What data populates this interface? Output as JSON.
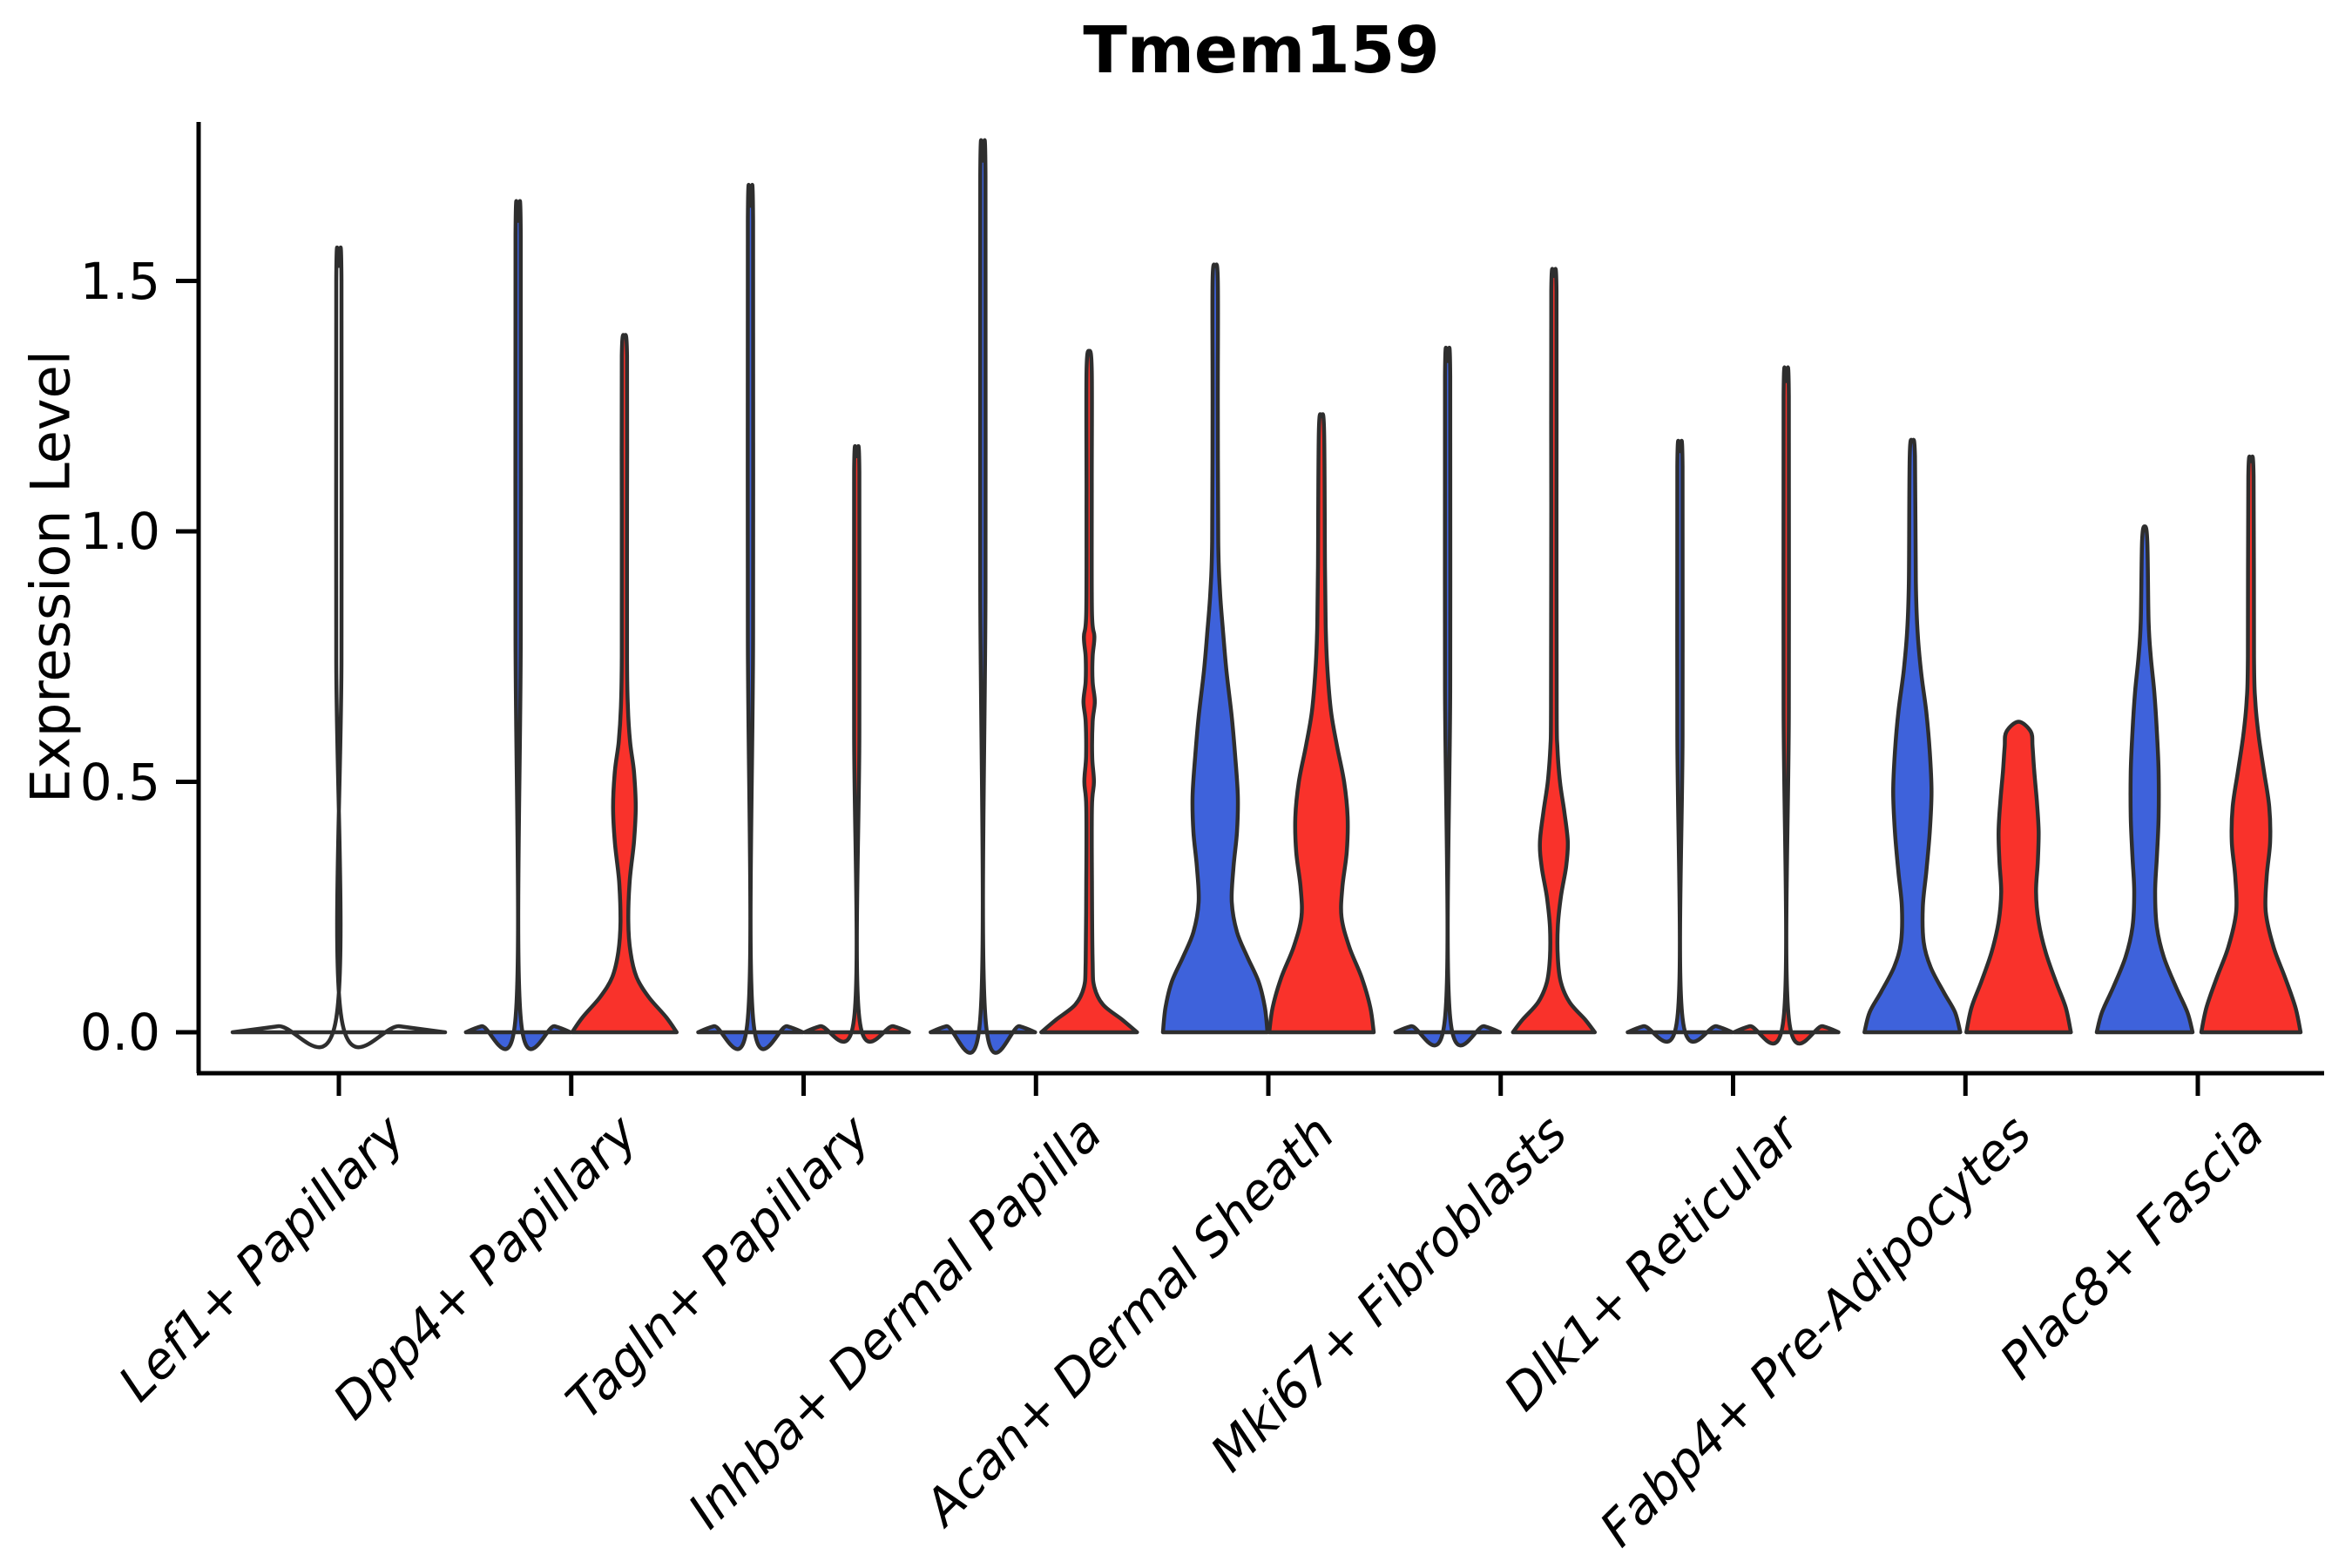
{
  "title": "Tmem159",
  "axes": {
    "y": {
      "label": "Expression Level",
      "ticks": [
        {
          "value": 0.0,
          "label": "0.0"
        },
        {
          "value": 0.5,
          "label": "0.5"
        },
        {
          "value": 1.0,
          "label": "1.0"
        },
        {
          "value": 1.5,
          "label": "1.5"
        }
      ]
    },
    "x": {
      "categories": [
        "Lef1+ Papillary",
        "Dpp4+ Papillary",
        "Tagln+ Papillary",
        "Inhba+ Dermal Papilla",
        "Acan+ Dermal Sheath",
        "Mki67+ Fibroblasts",
        "Dlk1+ Reticular",
        "Fabp4+ Pre-Adipocytes",
        "Plac8+ Fascia"
      ]
    }
  },
  "colors": {
    "split_left_fill": "#3E62DB",
    "split_right_fill": "#F9322B",
    "violin_outline": "#2E2E2E",
    "axis_color": "#000000",
    "background": "#FFFFFF"
  },
  "chart_data": {
    "type": "violin",
    "title": "Tmem159",
    "ylabel": "Expression Level",
    "ylim": [
      -0.08,
      1.82
    ],
    "yticks": [
      0.0,
      0.5,
      1.0,
      1.5
    ],
    "grid": false,
    "legend": "none",
    "categories": [
      "Lef1+ Papillary",
      "Dpp4+ Papillary",
      "Tagln+ Papillary",
      "Inhba+ Dermal Papilla",
      "Acan+ Dermal Sheath",
      "Mki67+ Fibroblasts",
      "Dlk1+ Reticular",
      "Fabp4+ Pre-Adipocytes",
      "Plac8+ Fascia"
    ],
    "violins": [
      {
        "category": 0,
        "slot": "full",
        "fill": null,
        "max_expression": 1.53,
        "profile": [
          [
            0,
            122
          ],
          [
            0.012,
            70
          ],
          [
            0.028,
            3
          ],
          [
            0.75,
            3
          ],
          [
            1.5,
            3
          ],
          [
            1.53,
            0
          ]
        ]
      },
      {
        "category": 1,
        "slot": "left",
        "fill": "#3E62DB",
        "max_expression": 1.62,
        "profile": [
          [
            0,
            60
          ],
          [
            0.012,
            42
          ],
          [
            0.028,
            3
          ],
          [
            0.8,
            3
          ],
          [
            1.59,
            3
          ],
          [
            1.62,
            0
          ]
        ]
      },
      {
        "category": 1,
        "slot": "right",
        "fill": "#F9322B",
        "max_expression": 1.39,
        "profile": [
          [
            0,
            60
          ],
          [
            0.03,
            48
          ],
          [
            0.07,
            28
          ],
          [
            0.11,
            14
          ],
          [
            0.16,
            7
          ],
          [
            0.22,
            4.5
          ],
          [
            0.3,
            6
          ],
          [
            0.38,
            11
          ],
          [
            0.45,
            13
          ],
          [
            0.52,
            11
          ],
          [
            0.58,
            6.5
          ],
          [
            0.65,
            4
          ],
          [
            0.75,
            3
          ],
          [
            1.05,
            3
          ],
          [
            1.35,
            3
          ],
          [
            1.39,
            0
          ]
        ]
      },
      {
        "category": 2,
        "slot": "left",
        "fill": "#3E62DB",
        "max_expression": 1.65,
        "profile": [
          [
            0,
            60
          ],
          [
            0.012,
            42
          ],
          [
            0.028,
            3
          ],
          [
            0.8,
            3
          ],
          [
            1.62,
            3
          ],
          [
            1.65,
            0
          ]
        ]
      },
      {
        "category": 2,
        "slot": "right",
        "fill": "#F9322B",
        "max_expression": 1.15,
        "profile": [
          [
            0,
            60
          ],
          [
            0.012,
            42
          ],
          [
            0.028,
            3
          ],
          [
            0.6,
            3
          ],
          [
            1.12,
            3
          ],
          [
            1.15,
            0
          ]
        ]
      },
      {
        "category": 3,
        "slot": "left",
        "fill": "#3E62DB",
        "max_expression": 1.74,
        "profile": [
          [
            0,
            60
          ],
          [
            0.012,
            42
          ],
          [
            0.028,
            3
          ],
          [
            0.9,
            3
          ],
          [
            1.71,
            3
          ],
          [
            1.74,
            0
          ]
        ]
      },
      {
        "category": 3,
        "slot": "right",
        "fill": "#F9322B",
        "max_expression": 1.36,
        "profile": [
          [
            0,
            55
          ],
          [
            0.025,
            38
          ],
          [
            0.055,
            16
          ],
          [
            0.09,
            6
          ],
          [
            0.14,
            4
          ],
          [
            0.3,
            3.2
          ],
          [
            0.45,
            3.2
          ],
          [
            0.5,
            5.5
          ],
          [
            0.55,
            3.5
          ],
          [
            0.62,
            4
          ],
          [
            0.66,
            6.5
          ],
          [
            0.7,
            4
          ],
          [
            0.75,
            4
          ],
          [
            0.79,
            6
          ],
          [
            0.84,
            3.2
          ],
          [
            1.08,
            3
          ],
          [
            1.32,
            3
          ],
          [
            1.36,
            0
          ]
        ]
      },
      {
        "category": 4,
        "slot": "left",
        "fill": "#3E62DB",
        "max_expression": 1.53,
        "profile": [
          [
            0,
            60
          ],
          [
            0.05,
            57
          ],
          [
            0.1,
            50
          ],
          [
            0.15,
            37
          ],
          [
            0.2,
            25
          ],
          [
            0.26,
            19
          ],
          [
            0.33,
            21
          ],
          [
            0.4,
            25
          ],
          [
            0.47,
            26
          ],
          [
            0.55,
            23
          ],
          [
            0.63,
            19
          ],
          [
            0.72,
            13
          ],
          [
            0.8,
            9
          ],
          [
            0.88,
            5.5
          ],
          [
            0.98,
            3.5
          ],
          [
            1.25,
            3
          ],
          [
            1.5,
            3
          ],
          [
            1.53,
            0
          ]
        ]
      },
      {
        "category": 4,
        "slot": "right",
        "fill": "#F9322B",
        "max_expression": 1.23,
        "profile": [
          [
            0,
            60
          ],
          [
            0.05,
            56
          ],
          [
            0.11,
            46
          ],
          [
            0.17,
            32
          ],
          [
            0.23,
            23
          ],
          [
            0.29,
            24
          ],
          [
            0.36,
            29
          ],
          [
            0.43,
            30
          ],
          [
            0.5,
            26
          ],
          [
            0.57,
            18
          ],
          [
            0.64,
            11
          ],
          [
            0.72,
            7
          ],
          [
            0.8,
            5
          ],
          [
            0.93,
            4
          ],
          [
            1.2,
            3
          ],
          [
            1.23,
            0
          ]
        ]
      },
      {
        "category": 5,
        "slot": "left",
        "fill": "#3E62DB",
        "max_expression": 1.34,
        "profile": [
          [
            0,
            60
          ],
          [
            0.012,
            42
          ],
          [
            0.028,
            3
          ],
          [
            0.7,
            3
          ],
          [
            1.31,
            3
          ],
          [
            1.34,
            0
          ]
        ]
      },
      {
        "category": 5,
        "slot": "right",
        "fill": "#F9322B",
        "max_expression": 1.51,
        "profile": [
          [
            0,
            47
          ],
          [
            0.025,
            36
          ],
          [
            0.06,
            18
          ],
          [
            0.1,
            8
          ],
          [
            0.15,
            4.5
          ],
          [
            0.21,
            4.5
          ],
          [
            0.27,
            8
          ],
          [
            0.33,
            14
          ],
          [
            0.38,
            16
          ],
          [
            0.44,
            12
          ],
          [
            0.5,
            7
          ],
          [
            0.57,
            4
          ],
          [
            0.65,
            3.2
          ],
          [
            1.05,
            3
          ],
          [
            1.48,
            3
          ],
          [
            1.51,
            0
          ]
        ]
      },
      {
        "category": 6,
        "slot": "left",
        "fill": "#3E62DB",
        "max_expression": 1.16,
        "profile": [
          [
            0,
            60
          ],
          [
            0.012,
            42
          ],
          [
            0.028,
            3
          ],
          [
            0.6,
            3
          ],
          [
            1.13,
            3
          ],
          [
            1.16,
            0
          ]
        ]
      },
      {
        "category": 6,
        "slot": "right",
        "fill": "#F9322B",
        "max_expression": 1.3,
        "profile": [
          [
            0,
            60
          ],
          [
            0.012,
            42
          ],
          [
            0.028,
            3
          ],
          [
            0.65,
            3
          ],
          [
            1.27,
            3
          ],
          [
            1.3,
            0
          ]
        ]
      },
      {
        "category": 7,
        "slot": "left",
        "fill": "#3E62DB",
        "max_expression": 1.18,
        "profile": [
          [
            0,
            55
          ],
          [
            0.04,
            49
          ],
          [
            0.08,
            36
          ],
          [
            0.13,
            21
          ],
          [
            0.18,
            13
          ],
          [
            0.25,
            12
          ],
          [
            0.32,
            16
          ],
          [
            0.4,
            20
          ],
          [
            0.48,
            22
          ],
          [
            0.56,
            20
          ],
          [
            0.64,
            16
          ],
          [
            0.72,
            10
          ],
          [
            0.8,
            6
          ],
          [
            0.9,
            4
          ],
          [
            1.15,
            3
          ],
          [
            1.18,
            0
          ]
        ]
      },
      {
        "category": 7,
        "slot": "right",
        "fill": "#F9322B",
        "max_expression": 0.62,
        "profile": [
          [
            0,
            60
          ],
          [
            0.05,
            54
          ],
          [
            0.1,
            43
          ],
          [
            0.16,
            31
          ],
          [
            0.22,
            23
          ],
          [
            0.28,
            20
          ],
          [
            0.34,
            22
          ],
          [
            0.4,
            23
          ],
          [
            0.46,
            21
          ],
          [
            0.52,
            18
          ],
          [
            0.57,
            16
          ],
          [
            0.6,
            14
          ],
          [
            0.62,
            0
          ]
        ]
      },
      {
        "category": 8,
        "slot": "left",
        "fill": "#3E62DB",
        "max_expression": 1.01,
        "profile": [
          [
            0,
            55
          ],
          [
            0.04,
            49
          ],
          [
            0.09,
            36
          ],
          [
            0.15,
            22
          ],
          [
            0.21,
            14
          ],
          [
            0.28,
            12
          ],
          [
            0.35,
            14
          ],
          [
            0.43,
            16
          ],
          [
            0.52,
            16
          ],
          [
            0.6,
            14
          ],
          [
            0.68,
            11
          ],
          [
            0.75,
            7
          ],
          [
            0.82,
            4.5
          ],
          [
            0.98,
            3
          ],
          [
            1.01,
            0
          ]
        ]
      },
      {
        "category": 8,
        "slot": "right",
        "fill": "#F9322B",
        "max_expression": 1.14,
        "profile": [
          [
            0,
            57
          ],
          [
            0.05,
            51
          ],
          [
            0.11,
            39
          ],
          [
            0.17,
            26
          ],
          [
            0.24,
            17
          ],
          [
            0.31,
            18
          ],
          [
            0.38,
            22
          ],
          [
            0.45,
            21
          ],
          [
            0.52,
            15
          ],
          [
            0.59,
            9
          ],
          [
            0.66,
            5
          ],
          [
            0.75,
            3.5
          ],
          [
            1.11,
            3
          ],
          [
            1.14,
            0
          ]
        ]
      }
    ]
  }
}
